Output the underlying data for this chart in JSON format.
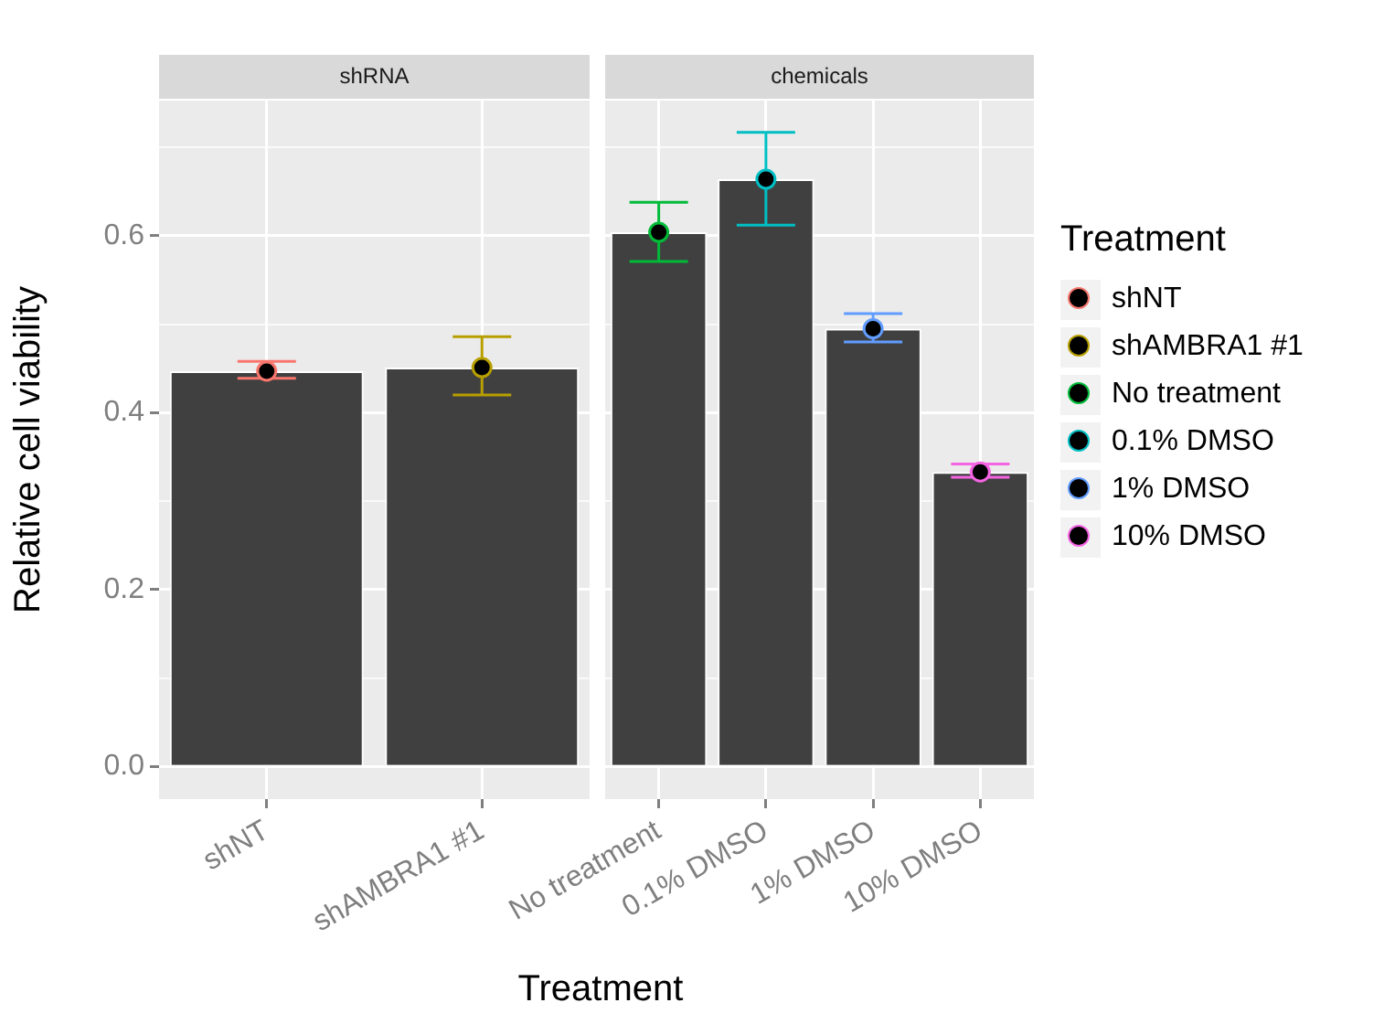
{
  "chart_data": [
    {
      "type": "bar",
      "title": "shRNA",
      "legend": "right",
      "ylabel": "Relative cell viability",
      "categories": [
        "shNT",
        "shAMBRA1 #1"
      ],
      "ylim": [
        -0.037,
        0.753
      ],
      "yticks": [
        {
          "value": 0,
          "label": "0.0"
        },
        {
          "value": 0.1,
          "label": null
        },
        {
          "value": 0.2,
          "label": "0.2"
        },
        {
          "value": 0.3,
          "label": null
        },
        {
          "value": 0.4,
          "label": "0.4"
        },
        {
          "value": 0.5,
          "label": null
        },
        {
          "value": 0.6,
          "label": "0.6"
        },
        {
          "value": 0.7,
          "label": null
        }
      ],
      "grid": true,
      "marker": "circle",
      "series": [
        {
          "type": "bar",
          "color": "#404040",
          "values": [
            0.447,
            0.451
          ]
        },
        {
          "type": "scatter",
          "name": "shNT",
          "color": "#f8766d",
          "x": [
            "shNT"
          ],
          "values": [
            0.447
          ],
          "errors": [
            [
              0.439,
              0.458
            ]
          ]
        },
        {
          "type": "scatter",
          "name": "shAMBRA1 #1",
          "color": "#b79f00",
          "x": [
            "shAMBRA1 #1"
          ],
          "values": [
            0.451
          ],
          "errors": [
            [
              0.42,
              0.486
            ]
          ]
        }
      ]
    },
    {
      "type": "bar",
      "title": "chemicals",
      "xlabel": "Treatment",
      "legend": "right",
      "legend_title": "Treatment",
      "categories": [
        "No treatment",
        "0.1% DMSO",
        "1% DMSO",
        "10% DMSO"
      ],
      "ylim": [
        -0.037,
        0.753
      ],
      "yticks": [
        0,
        {
          "value": 0.1,
          "label": null
        },
        0.2,
        {
          "value": 0.3,
          "label": null
        },
        0.4,
        {
          "value": 0.5,
          "label": null
        },
        0.6,
        {
          "value": 0.7,
          "label": null
        }
      ],
      "tick_labels": "x",
      "grid": true,
      "marker": "circle",
      "series": [
        {
          "type": "bar",
          "color": "#404040",
          "values": [
            0.604,
            0.664,
            0.495,
            0.333
          ]
        },
        {
          "type": "scatter",
          "name": "No treatment",
          "color": "#00ba38",
          "x": [
            "No treatment"
          ],
          "values": [
            0.604
          ],
          "errors": [
            [
              0.571,
              0.638
            ]
          ]
        },
        {
          "type": "scatter",
          "name": "0.1% DMSO",
          "color": "#00bfc4",
          "x": [
            "0.1% DMSO"
          ],
          "values": [
            0.664
          ],
          "errors": [
            [
              0.612,
              0.717
            ]
          ]
        },
        {
          "type": "scatter",
          "name": "1% DMSO",
          "color": "#619cff",
          "x": [
            "1% DMSO"
          ],
          "values": [
            0.495
          ],
          "errors": [
            [
              0.48,
              0.512
            ]
          ]
        },
        {
          "type": "scatter",
          "name": "10% DMSO",
          "color": "#f564e3",
          "x": [
            "10% DMSO"
          ],
          "values": [
            0.333
          ],
          "errors": [
            [
              0.327,
              0.342
            ]
          ]
        }
      ]
    }
  ]
}
